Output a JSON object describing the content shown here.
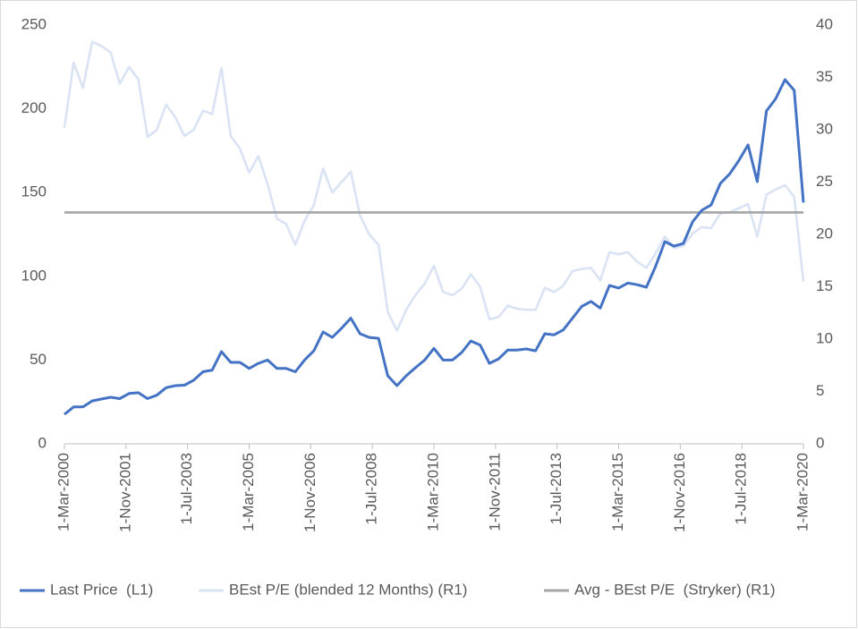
{
  "chart_data": {
    "type": "line",
    "x": [
      "2000-03-01",
      "2000-06-01",
      "2000-09-01",
      "2000-12-01",
      "2001-03-01",
      "2001-06-01",
      "2001-09-01",
      "2001-12-01",
      "2002-03-01",
      "2002-06-01",
      "2002-09-01",
      "2002-12-01",
      "2003-03-01",
      "2003-06-01",
      "2003-09-01",
      "2003-12-01",
      "2004-03-01",
      "2004-06-01",
      "2004-09-01",
      "2004-12-01",
      "2005-03-01",
      "2005-06-01",
      "2005-09-01",
      "2005-12-01",
      "2006-03-01",
      "2006-06-01",
      "2006-09-01",
      "2006-12-01",
      "2007-03-01",
      "2007-06-01",
      "2007-09-01",
      "2007-12-01",
      "2008-03-01",
      "2008-06-01",
      "2008-09-01",
      "2008-12-01",
      "2009-03-01",
      "2009-06-01",
      "2009-09-01",
      "2009-12-01",
      "2010-03-01",
      "2010-06-01",
      "2010-09-01",
      "2010-12-01",
      "2011-03-01",
      "2011-06-01",
      "2011-09-01",
      "2011-12-01",
      "2012-03-01",
      "2012-06-01",
      "2012-09-01",
      "2012-12-01",
      "2013-03-01",
      "2013-06-01",
      "2013-09-01",
      "2013-12-01",
      "2014-03-01",
      "2014-06-01",
      "2014-09-01",
      "2014-12-01",
      "2015-03-01",
      "2015-06-01",
      "2015-09-01",
      "2015-12-01",
      "2016-03-01",
      "2016-06-01",
      "2016-09-01",
      "2016-12-01",
      "2017-03-01",
      "2017-06-01",
      "2017-09-01",
      "2017-12-01",
      "2018-03-01",
      "2018-06-01",
      "2018-09-01",
      "2018-12-01",
      "2019-03-01",
      "2019-06-01",
      "2019-09-01",
      "2019-12-01",
      "2020-03-01"
    ],
    "series": [
      {
        "name": "Last Price  (L1)",
        "color": "#4472c4",
        "axis": "y",
        "values": [
          17.6,
          22,
          22,
          25.6,
          26.7,
          27.8,
          27,
          30,
          30.5,
          27,
          29,
          33.5,
          34.7,
          35,
          38,
          43,
          44,
          55,
          48.6,
          48.6,
          45,
          48,
          50,
          45,
          45,
          43,
          50,
          55.5,
          66.8,
          63.5,
          69,
          75,
          65.7,
          63.5,
          63,
          40.6,
          34.7,
          40.6,
          45.4,
          50,
          57,
          50,
          50,
          54.5,
          61.4,
          59,
          48,
          50.7,
          56,
          56,
          56.6,
          55.5,
          65.7,
          65,
          68,
          75,
          82,
          85,
          81,
          94.5,
          93,
          96,
          95,
          93.5,
          106,
          120.7,
          118,
          119.6,
          132.5,
          139.4,
          142.6,
          155.4,
          161,
          169,
          178.4,
          156.5,
          198.7,
          206,
          217.4,
          211,
          144
        ]
      },
      {
        "name": "BEst P/E (blended 12 Months) (R1)",
        "color": "#dae3f3",
        "axis": "y2",
        "values": [
          30.2,
          36.4,
          34,
          38.4,
          38,
          37.4,
          34.4,
          36,
          34.8,
          29.3,
          30,
          32.4,
          31.2,
          29.4,
          30,
          31.8,
          31.5,
          35.9,
          29.4,
          28.2,
          25.9,
          27.5,
          24.8,
          21.5,
          21,
          19,
          21.3,
          22.8,
          26.3,
          24,
          25,
          26,
          21.8,
          20,
          19,
          12.6,
          10.8,
          12.8,
          14.2,
          15.3,
          17,
          14.5,
          14.2,
          14.8,
          16.2,
          15,
          11.9,
          12.1,
          13.2,
          12.9,
          12.8,
          12.8,
          14.9,
          14.5,
          15.1,
          16.5,
          16.7,
          16.8,
          15.6,
          18.3,
          18.1,
          18.3,
          17.4,
          16.8,
          18.2,
          19.8,
          18.7,
          18.9,
          20.1,
          20.7,
          20.6,
          22,
          22.1,
          22.5,
          22.9,
          19.8,
          23.8,
          24.3,
          24.7,
          23.6,
          15.5
        ]
      },
      {
        "name": "Avg - BEst P/E  (Stryker) (R1)",
        "color": "#a5a5a5",
        "axis": "y2",
        "x": [
          "2000-03-01",
          "2020-03-01"
        ],
        "values": [
          22.1,
          22.1
        ]
      }
    ],
    "xlim": [
      "2000-03-01",
      "2020-03-01"
    ],
    "xticks": [
      {
        "value": "2000-03-01",
        "label": "1-Mar-2000"
      },
      {
        "value": "2001-11-01",
        "label": "1-Nov-2001"
      },
      {
        "value": "2003-07-01",
        "label": "1-Jul-2003"
      },
      {
        "value": "2005-03-01",
        "label": "1-Mar-2005"
      },
      {
        "value": "2006-11-01",
        "label": "1-Nov-2006"
      },
      {
        "value": "2008-07-01",
        "label": "1-Jul-2008"
      },
      {
        "value": "2010-03-01",
        "label": "1-Mar-2010"
      },
      {
        "value": "2011-11-01",
        "label": "1-Nov-2011"
      },
      {
        "value": "2013-07-01",
        "label": "1-Jul-2013"
      },
      {
        "value": "2015-03-01",
        "label": "1-Mar-2015"
      },
      {
        "value": "2016-11-01",
        "label": "1-Nov-2016"
      },
      {
        "value": "2018-07-01",
        "label": "1-Jul-2018"
      },
      {
        "value": "2020-03-01",
        "label": "1-Mar-2020"
      }
    ],
    "ylim": [
      0,
      250
    ],
    "yticks": [
      0,
      50,
      100,
      150,
      200,
      250
    ],
    "y2lim": [
      0,
      40
    ],
    "y2ticks": [
      0,
      5,
      10,
      15,
      20,
      25,
      30,
      35,
      40
    ],
    "grid": false,
    "legend": "bottom"
  }
}
